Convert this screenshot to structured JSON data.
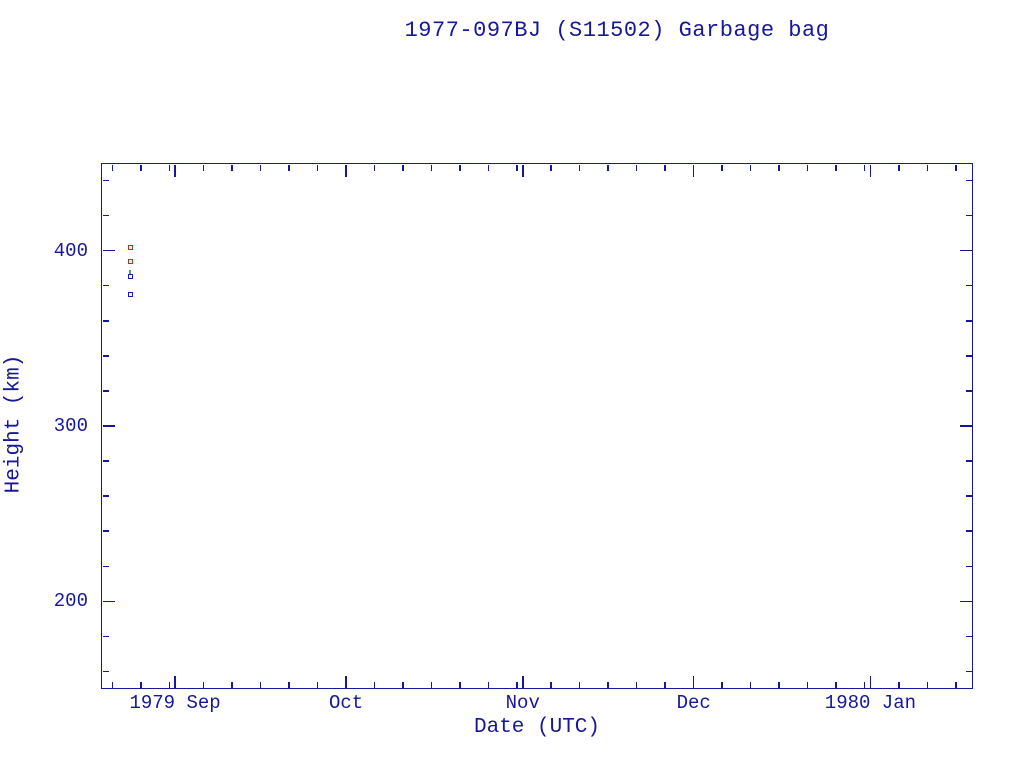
{
  "header": {
    "title": "1977-097BJ (S11502) Garbage bag"
  },
  "chart_data": {
    "type": "scatter",
    "title": "1977-097BJ (S11502) Garbage bag",
    "xlabel": "Date (UTC)",
    "ylabel": "Height (km)",
    "x_axis": {
      "unit": "days",
      "start_date": "1979 Aug 19",
      "end_date": "1980 Jan 19",
      "range_days": [
        0,
        153
      ],
      "major_ticks": [
        {
          "day": 13,
          "label": "1979 Sep"
        },
        {
          "day": 43,
          "label": "Oct"
        },
        {
          "day": 74,
          "label": "Nov"
        },
        {
          "day": 104,
          "label": "Dec"
        },
        {
          "day": 135,
          "label": "1980 Jan"
        }
      ],
      "minor_tick_days": [
        2,
        7,
        12,
        18,
        23,
        28,
        33,
        38,
        48,
        53,
        58,
        63,
        68,
        73,
        79,
        84,
        89,
        94,
        99,
        109,
        114,
        119,
        124,
        129,
        134,
        140,
        145,
        150
      ]
    },
    "y_axis": {
      "unit": "km",
      "range_km": [
        150,
        450
      ],
      "major_ticks": [
        {
          "km": 200,
          "label": "200"
        },
        {
          "km": 300,
          "label": "300"
        },
        {
          "km": 400,
          "label": "400"
        }
      ],
      "minor_tick_kms": [
        160,
        180,
        220,
        240,
        260,
        280,
        320,
        340,
        360,
        380,
        420,
        440
      ]
    },
    "series": [
      {
        "name": "red-open-squares",
        "marker": "open-square",
        "color": "#c22828",
        "points": [
          {
            "date": "1979 Aug 24",
            "day": 5.1,
            "height_km": 402
          },
          {
            "date": "1979 Aug 24",
            "day": 5.1,
            "height_km": 394
          }
        ]
      },
      {
        "name": "green-dash",
        "marker": "vertical-dash",
        "color": "#48aa48",
        "points": [
          {
            "date": "1979 Aug 24",
            "day": 5.1,
            "height_km": 388
          }
        ]
      },
      {
        "name": "blue-open-squares",
        "marker": "open-square",
        "color": "#1818c4",
        "points": [
          {
            "date": "1979 Aug 24",
            "day": 5.1,
            "height_km": 385
          },
          {
            "date": "1979 Aug 24",
            "day": 5.1,
            "height_km": 375
          }
        ]
      }
    ],
    "style": {
      "axis_color": "#17179c",
      "background": "#ffffff",
      "grid": false,
      "legend": "none",
      "tick_direction": "inward",
      "frame": "full-box"
    }
  }
}
